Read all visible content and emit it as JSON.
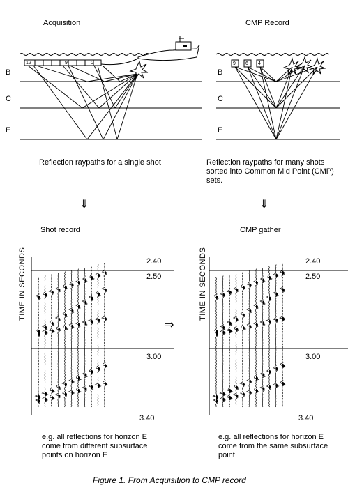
{
  "titles": {
    "acquisition": "Acquisition",
    "cmp_record": "CMP Record",
    "shot_record": "Shot record",
    "cmp_gather": "CMP gather"
  },
  "horizons": [
    "B",
    "C",
    "E"
  ],
  "receiver_labels": {
    "acquisition": [
      "12",
      "9",
      "2"
    ],
    "cmp": [
      "9",
      "6",
      "4"
    ]
  },
  "captions": {
    "acquisition": "Reflection raypaths for a single shot",
    "cmp": "Reflection raypaths for many shots sorted into Common Mid Point (CMP) sets.",
    "shot_record": "e.g. all reflections for horizon E come from different subsurface points on horizon E",
    "cmp_gather": "e.g. all reflections for horizon E come from the same subsurface point"
  },
  "arrows": {
    "down": "⇓",
    "right": "⇒"
  },
  "axis_label": "TIME IN SECONDS",
  "time_ticks": [
    "2.40",
    "2.50",
    "3.00",
    "3.40"
  ],
  "figure_caption": "Figure 1.  From Acquisition to CMP record"
}
